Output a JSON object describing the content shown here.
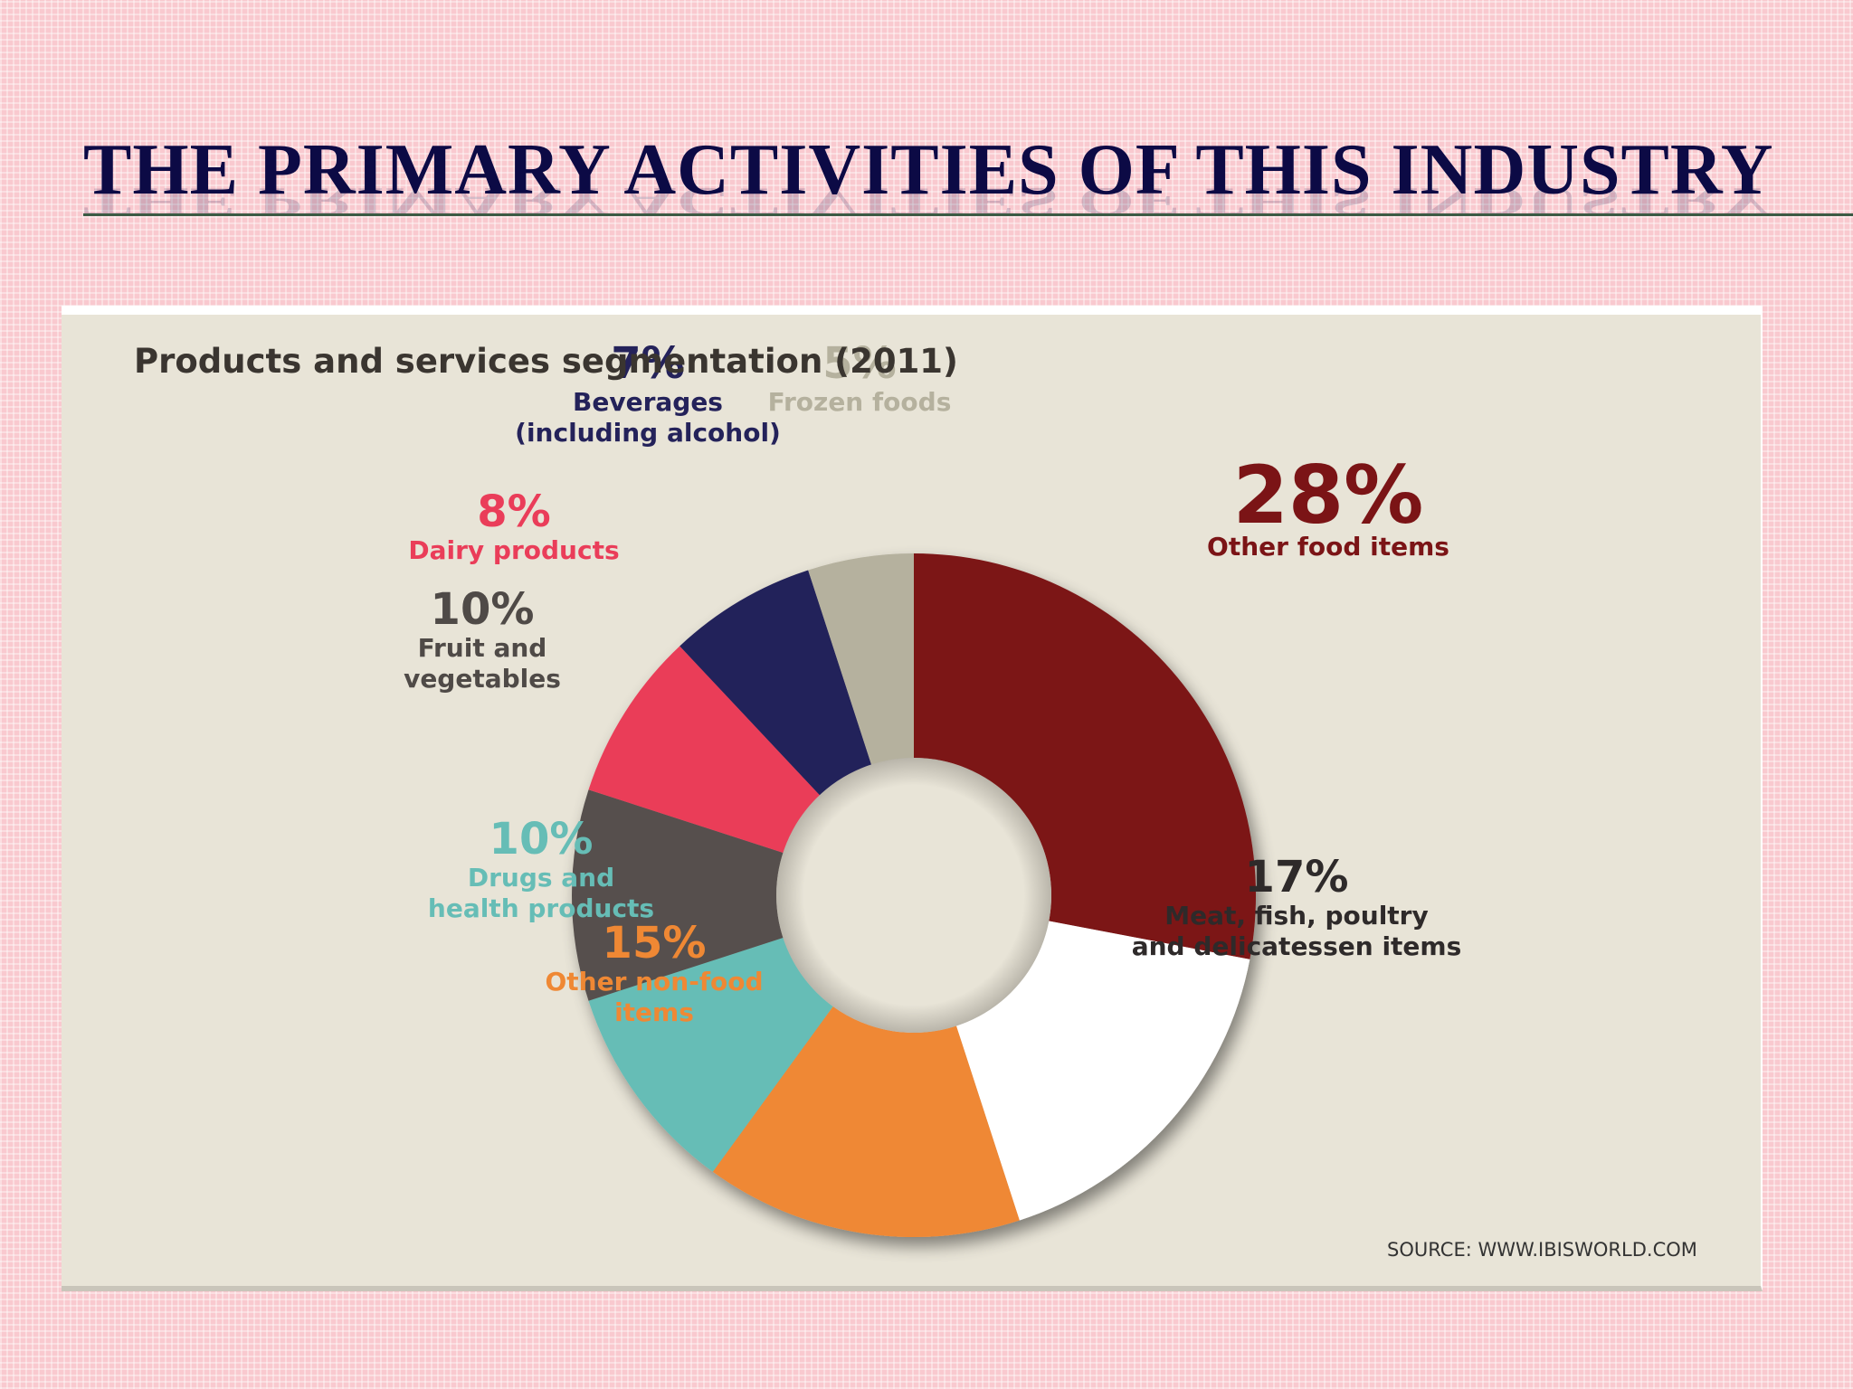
{
  "slide": {
    "title": "THE PRIMARY ACTIVITIES OF THIS INDUSTRY"
  },
  "chart_data": {
    "type": "pie",
    "style": "donut",
    "title": "Products and services segmentation (2011)",
    "source": "SOURCE: WWW.IBISWORLD.COM",
    "unit": "%",
    "slices": [
      {
        "pct_label": "28%",
        "value": 28,
        "label_lines": [
          "Other food items"
        ],
        "color": "#7b1416",
        "label_color": "#7b1416"
      },
      {
        "pct_label": "17%",
        "value": 17,
        "label_lines": [
          "Meat, fish, poultry",
          "and delicatessen items"
        ],
        "color": "#ffffff",
        "label_color": "#2e2a2a"
      },
      {
        "pct_label": "15%",
        "value": 15,
        "label_lines": [
          "Other non-food",
          "items"
        ],
        "color": "#ef8834",
        "label_color": "#ef8834"
      },
      {
        "pct_label": "10%",
        "value": 10,
        "label_lines": [
          "Drugs and",
          "health products"
        ],
        "color": "#66bdb6",
        "label_color": "#66bdb6"
      },
      {
        "pct_label": "10%",
        "value": 10,
        "label_lines": [
          "Fruit and",
          "vegetables"
        ],
        "color": "#57504d",
        "label_color": "#4f4a47"
      },
      {
        "pct_label": "8%",
        "value": 8,
        "label_lines": [
          "Dairy products"
        ],
        "color": "#ea3d59",
        "label_color": "#ea3d59"
      },
      {
        "pct_label": "7%",
        "value": 7,
        "label_lines": [
          "Beverages",
          "(including alcohol)"
        ],
        "color": "#24225a",
        "label_color": "#24225a"
      },
      {
        "pct_label": "5%",
        "value": 5,
        "label_lines": [
          "Frozen foods"
        ],
        "color": "#b5b19e",
        "label_color": "#b5b19e"
      }
    ],
    "legend": "none"
  }
}
